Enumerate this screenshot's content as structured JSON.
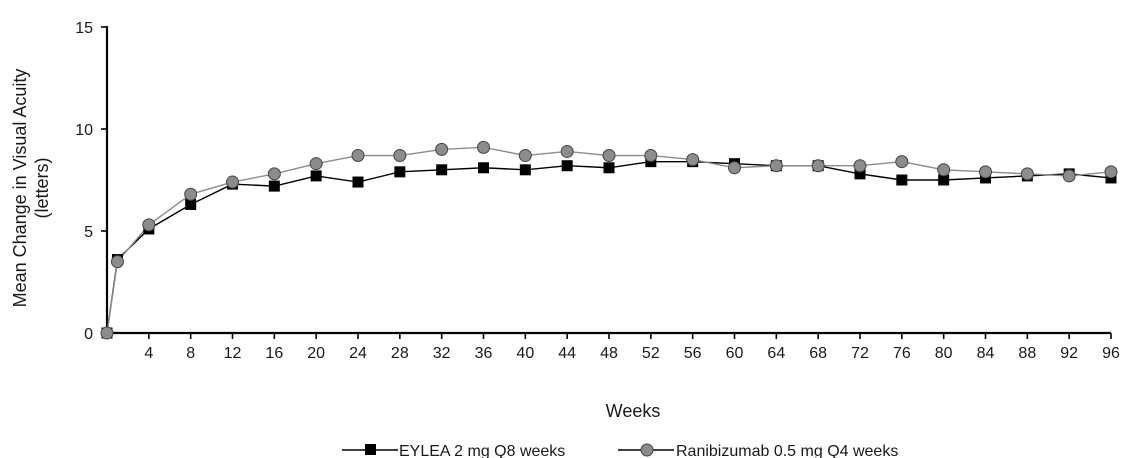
{
  "chart_data": {
    "type": "line",
    "title": "",
    "xlabel": "Weeks",
    "ylabel_line1": "Mean Change in Visual Acuity",
    "ylabel_line2": "(letters)",
    "xlim": [
      0,
      96
    ],
    "ylim": [
      0,
      15
    ],
    "x_ticks": [
      "4",
      "8",
      "12",
      "16",
      "20",
      "24",
      "28",
      "32",
      "36",
      "40",
      "44",
      "48",
      "52",
      "56",
      "60",
      "64",
      "68",
      "72",
      "76",
      "80",
      "84",
      "88",
      "92",
      "96"
    ],
    "y_ticks": [
      "0",
      "5",
      "10",
      "15"
    ],
    "grid": false,
    "legend_position": "bottom-center",
    "x": [
      0,
      1,
      4,
      8,
      12,
      16,
      20,
      24,
      28,
      32,
      36,
      40,
      44,
      48,
      52,
      56,
      60,
      64,
      68,
      72,
      76,
      80,
      84,
      88,
      92,
      96
    ],
    "series": [
      {
        "name": "EYLEA 2 mg Q8 weeks",
        "marker": "square",
        "color": "#000000",
        "values": [
          0,
          3.6,
          5.1,
          6.3,
          7.3,
          7.2,
          7.7,
          7.4,
          7.9,
          8.0,
          8.1,
          8.0,
          8.2,
          8.1,
          8.4,
          8.4,
          8.3,
          8.2,
          8.2,
          7.8,
          7.5,
          7.5,
          7.6,
          7.7,
          7.8,
          7.6
        ]
      },
      {
        "name": "Ranibizumab 0.5 mg Q4 weeks",
        "marker": "circle",
        "color": "#8c8c8c",
        "values": [
          0,
          3.5,
          5.3,
          6.8,
          7.4,
          7.8,
          8.3,
          8.7,
          8.7,
          9.0,
          9.1,
          8.7,
          8.9,
          8.7,
          8.7,
          8.5,
          8.1,
          8.2,
          8.2,
          8.2,
          8.4,
          8.0,
          7.9,
          7.8,
          7.7,
          7.9
        ]
      }
    ]
  }
}
